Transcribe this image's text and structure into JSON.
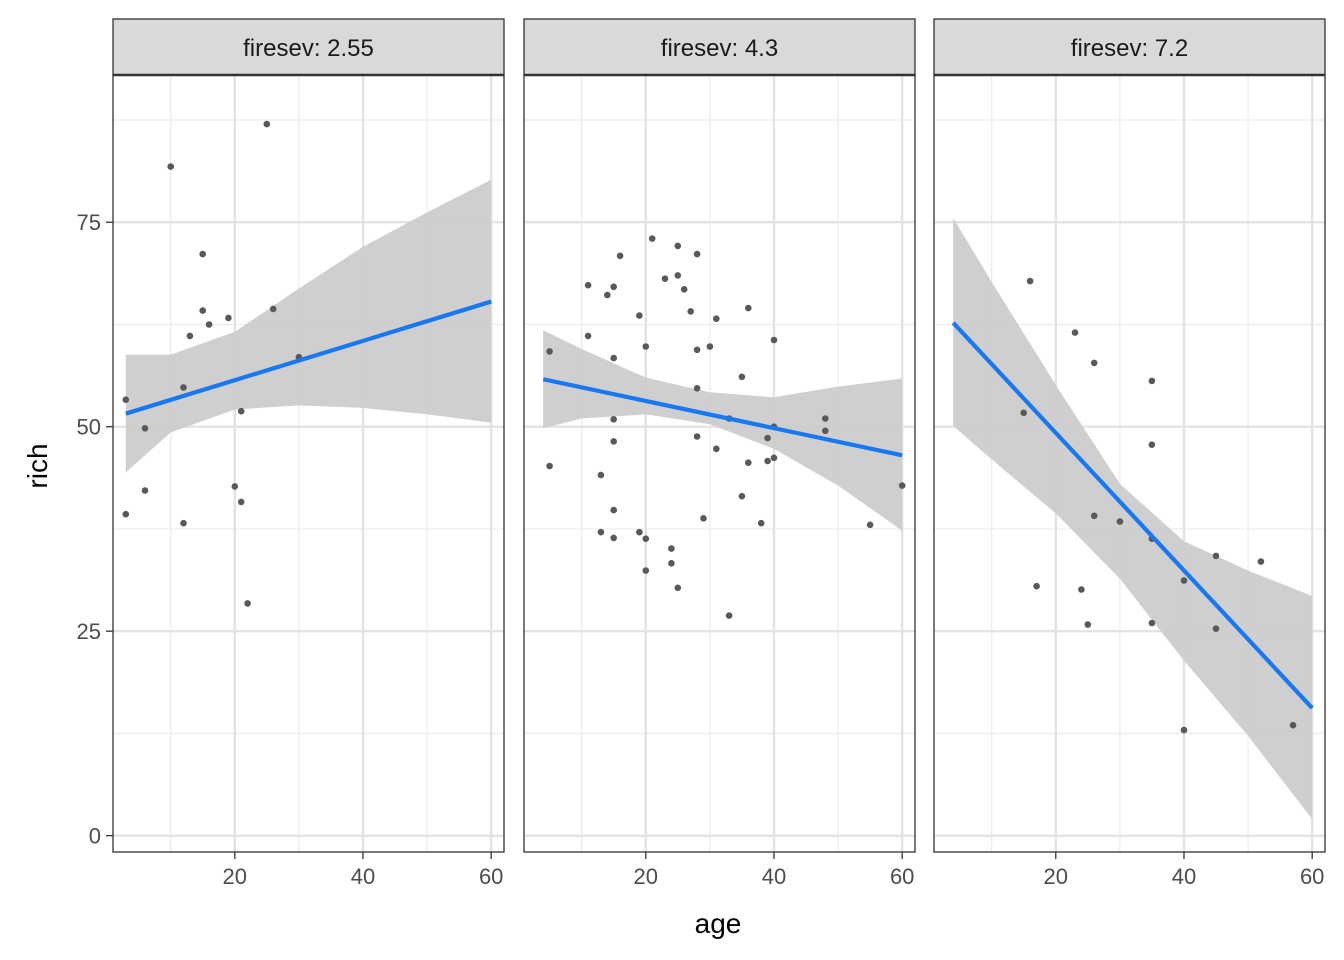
{
  "chart_data": {
    "type": "scatter",
    "xlabel": "age",
    "ylabel": "rich",
    "x_ticks": [
      20,
      40,
      60
    ],
    "y_ticks": [
      0,
      25,
      50,
      75
    ],
    "xlim": [
      1,
      62
    ],
    "ylim": [
      -2,
      93
    ],
    "grid": true,
    "colors": {
      "points": "#595959",
      "line": "#1877f2",
      "ribbon": "#cccccc",
      "strip": "#d9d9d9"
    },
    "panels": [
      {
        "strip_label": "firesev: 2.55",
        "points": [
          [
            3,
            53.3
          ],
          [
            3,
            39.3
          ],
          [
            6,
            49.8
          ],
          [
            6,
            42.2
          ],
          [
            10,
            81.8
          ],
          [
            12,
            54.8
          ],
          [
            12,
            38.2
          ],
          [
            13,
            61.1
          ],
          [
            15,
            71.1
          ],
          [
            15,
            64.2
          ],
          [
            16,
            62.5
          ],
          [
            19,
            63.3
          ],
          [
            20,
            42.7
          ],
          [
            21,
            51.9
          ],
          [
            21,
            40.8
          ],
          [
            22,
            28.4
          ],
          [
            25,
            87.0
          ],
          [
            26,
            64.4
          ],
          [
            30,
            58.5
          ]
        ],
        "fit": {
          "x": [
            3,
            60
          ],
          "y": [
            51.6,
            65.3
          ]
        },
        "ribbon": {
          "x": [
            3,
            10,
            20,
            30,
            40,
            50,
            60
          ],
          "lower": [
            44.4,
            49.3,
            52.1,
            52.6,
            52.3,
            51.5,
            50.5
          ],
          "upper": [
            58.8,
            58.8,
            61.6,
            66.9,
            72.0,
            76.2,
            80.2
          ]
        }
      },
      {
        "strip_label": "firesev: 4.3",
        "points": [
          [
            5,
            59.2
          ],
          [
            5,
            45.2
          ],
          [
            11,
            67.3
          ],
          [
            11,
            61.1
          ],
          [
            13,
            44.1
          ],
          [
            13,
            37.1
          ],
          [
            14,
            66.1
          ],
          [
            15,
            67.1
          ],
          [
            15,
            58.4
          ],
          [
            15,
            50.9
          ],
          [
            15,
            48.2
          ],
          [
            15,
            39.8
          ],
          [
            15,
            36.4
          ],
          [
            16,
            70.9
          ],
          [
            19,
            63.6
          ],
          [
            19,
            37.1
          ],
          [
            20,
            59.8
          ],
          [
            20,
            36.3
          ],
          [
            20,
            32.4
          ],
          [
            21,
            73.0
          ],
          [
            23,
            68.1
          ],
          [
            24,
            35.1
          ],
          [
            24,
            33.3
          ],
          [
            25,
            72.1
          ],
          [
            25,
            68.5
          ],
          [
            25,
            30.3
          ],
          [
            26,
            66.8
          ],
          [
            27,
            64.1
          ],
          [
            28,
            71.1
          ],
          [
            28,
            59.4
          ],
          [
            28,
            54.7
          ],
          [
            28,
            48.8
          ],
          [
            29,
            38.8
          ],
          [
            30,
            59.8
          ],
          [
            31,
            63.2
          ],
          [
            31,
            47.3
          ],
          [
            33,
            51.0
          ],
          [
            33,
            26.9
          ],
          [
            35,
            56.1
          ],
          [
            35,
            41.5
          ],
          [
            36,
            64.5
          ],
          [
            36,
            45.6
          ],
          [
            38,
            38.2
          ],
          [
            39,
            48.6
          ],
          [
            39,
            45.8
          ],
          [
            40,
            60.6
          ],
          [
            40,
            50.0
          ],
          [
            40,
            46.2
          ],
          [
            48,
            51.0
          ],
          [
            48,
            49.5
          ],
          [
            55,
            38.0
          ],
          [
            60,
            42.8
          ]
        ],
        "fit": {
          "x": [
            4,
            60
          ],
          "y": [
            55.8,
            46.5
          ]
        },
        "ribbon": {
          "x": [
            4,
            10,
            20,
            30,
            40,
            50,
            60
          ],
          "lower": [
            49.8,
            51.0,
            51.5,
            50.3,
            47.3,
            42.8,
            37.3
          ],
          "upper": [
            61.8,
            59.5,
            56.0,
            54.2,
            53.6,
            54.9,
            55.9
          ]
        }
      },
      {
        "strip_label": "firesev: 7.2",
        "points": [
          [
            15,
            51.7
          ],
          [
            16,
            67.8
          ],
          [
            17,
            30.5
          ],
          [
            23,
            61.5
          ],
          [
            24,
            30.1
          ],
          [
            25,
            25.8
          ],
          [
            26,
            57.8
          ],
          [
            26,
            39.1
          ],
          [
            30,
            38.4
          ],
          [
            35,
            55.6
          ],
          [
            35,
            47.8
          ],
          [
            35,
            36.3
          ],
          [
            35,
            26.0
          ],
          [
            40,
            31.2
          ],
          [
            40,
            12.9
          ],
          [
            45,
            34.2
          ],
          [
            45,
            25.3
          ],
          [
            52,
            33.5
          ],
          [
            57,
            13.5
          ]
        ],
        "fit": {
          "x": [
            4,
            60
          ],
          "y": [
            62.7,
            15.6
          ]
        },
        "ribbon": {
          "x": [
            4,
            10,
            20,
            30,
            40,
            50,
            60
          ],
          "lower": [
            50.1,
            46.0,
            39.4,
            31.4,
            21.4,
            12.2,
            2.0
          ],
          "upper": [
            75.5,
            67.7,
            55.1,
            43.0,
            36.0,
            32.4,
            29.3
          ]
        }
      }
    ]
  }
}
